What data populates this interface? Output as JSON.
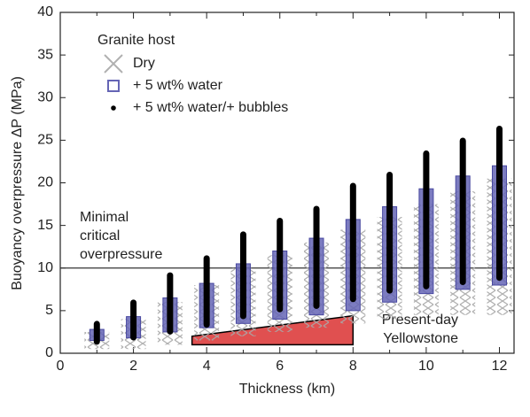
{
  "chart_data": {
    "type": "range",
    "xlabel": "Thickness (km)",
    "ylabel": "Buoyancy overpressure ΔP (MPa)",
    "xlim": [
      0,
      12.4
    ],
    "ylim": [
      0,
      40
    ],
    "xticks": [
      0,
      2,
      4,
      6,
      8,
      10,
      12
    ],
    "xminorticks": [
      1,
      3,
      5,
      7,
      9,
      11
    ],
    "yticks": [
      0,
      5,
      10,
      15,
      20,
      25,
      30,
      35,
      40
    ],
    "legend_title": "Granite host",
    "x": [
      1,
      2,
      3,
      4,
      5,
      6,
      7,
      8,
      9,
      10,
      11,
      12
    ],
    "series": [
      {
        "name": "Dry",
        "color": "#b8b8b8",
        "marker": "cross",
        "low": [
          0.5,
          0.5,
          1,
          1.5,
          2,
          2.5,
          3,
          3.5,
          4,
          4.5,
          4.5,
          4.5
        ],
        "high": [
          2.5,
          4,
          6,
          8,
          10,
          11.5,
          13,
          14.5,
          16,
          17.5,
          19,
          20.5
        ]
      },
      {
        "name": "+ 5 wt% water",
        "color": "#6565b5",
        "marker": "box",
        "low": [
          1.5,
          1.8,
          2.5,
          3,
          3.5,
          4,
          4.5,
          5,
          6,
          7,
          7.5,
          8
        ],
        "high": [
          2.8,
          4.3,
          6.5,
          8.2,
          10.5,
          12,
          13.5,
          15.7,
          17.2,
          19.3,
          20.8,
          22
        ]
      },
      {
        "name": "+ 5 wt% water/+ bubbles",
        "color": "#000000",
        "marker": "dot",
        "low": [
          1,
          1.5,
          2.2,
          3,
          4,
          4.8,
          5.2,
          6,
          7,
          7.5,
          8,
          8.5
        ],
        "high": [
          3.8,
          6.3,
          9.5,
          11.5,
          14.3,
          15.9,
          17.3,
          20,
          21.3,
          23.8,
          25.3,
          26.7
        ]
      }
    ],
    "reference_line": {
      "value": 10,
      "label": [
        "Minimal",
        "critical",
        "overpressure"
      ]
    },
    "region": {
      "color": "#e05050",
      "x": [
        3.6,
        8
      ],
      "y_low": [
        1,
        1
      ],
      "y_high": [
        2,
        4.4
      ],
      "label": [
        "Present-day",
        "Yellowstone"
      ]
    }
  }
}
